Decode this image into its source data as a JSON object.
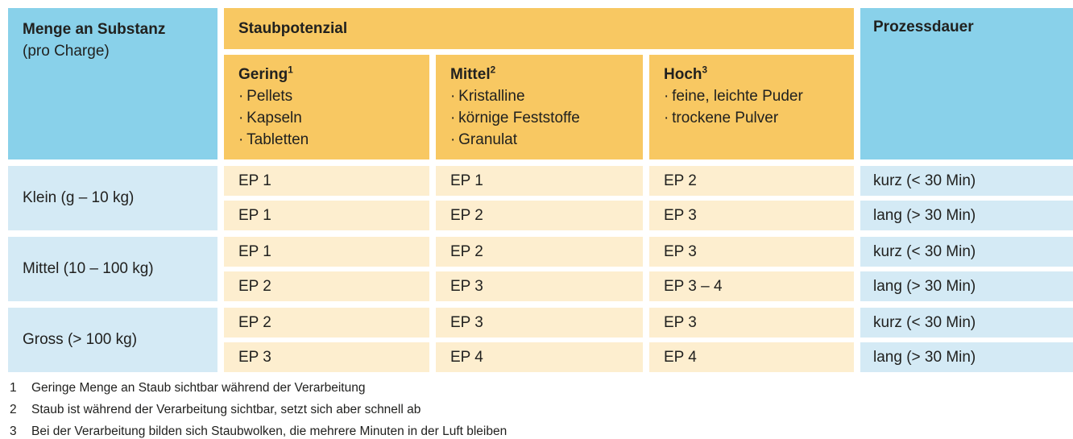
{
  "colors": {
    "header_blue": "#89d1ea",
    "data_blue": "#d4eaf5",
    "header_orange": "#f8c862",
    "data_cream": "#fdeecf",
    "text": "#21211f"
  },
  "header": {
    "substance": {
      "title": "Menge an Substanz",
      "subtitle": "(pro Charge)"
    },
    "banner": "Staubpotenzial",
    "duration": "Prozessdauer",
    "levels": [
      {
        "title": "Gering",
        "sup": "1",
        "items": [
          "Pellets",
          "Kapseln",
          "Tabletten"
        ]
      },
      {
        "title": "Mittel",
        "sup": "2",
        "items": [
          "Kristalline",
          "körnige Feststoffe",
          "Granulat"
        ]
      },
      {
        "title": "Hoch",
        "sup": "3",
        "items": [
          "feine, leichte Puder",
          "trockene Pulver"
        ]
      }
    ]
  },
  "groups": [
    {
      "label": "Klein (g – 10 kg)",
      "rows": [
        {
          "gering": "EP 1",
          "mittel": "EP 1",
          "hoch": "EP 2",
          "dauer": "kurz (< 30 Min)"
        },
        {
          "gering": "EP 1",
          "mittel": "EP 2",
          "hoch": "EP 3",
          "dauer": "lang (> 30 Min)"
        }
      ]
    },
    {
      "label": "Mittel (10 – 100 kg)",
      "rows": [
        {
          "gering": "EP 1",
          "mittel": "EP 2",
          "hoch": "EP 3",
          "dauer": "kurz (< 30 Min)"
        },
        {
          "gering": "EP 2",
          "mittel": "EP 3",
          "hoch": "EP 3 – 4",
          "dauer": "lang (> 30 Min)"
        }
      ]
    },
    {
      "label": "Gross (> 100 kg)",
      "rows": [
        {
          "gering": "EP 2",
          "mittel": "EP 3",
          "hoch": "EP 3",
          "dauer": "kurz (< 30 Min)"
        },
        {
          "gering": "EP 3",
          "mittel": "EP 4",
          "hoch": "EP 4",
          "dauer": "lang (> 30 Min)"
        }
      ]
    }
  ],
  "footnotes": [
    {
      "num": "1",
      "text": "Geringe Menge an Staub sichtbar während der Verarbeitung"
    },
    {
      "num": "2",
      "text": "Staub ist während der Verarbeitung sichtbar, setzt sich aber schnell ab"
    },
    {
      "num": "3",
      "text": "Bei der Verarbeitung bilden sich Staubwolken, die mehrere Minuten in der Luft bleiben"
    }
  ]
}
